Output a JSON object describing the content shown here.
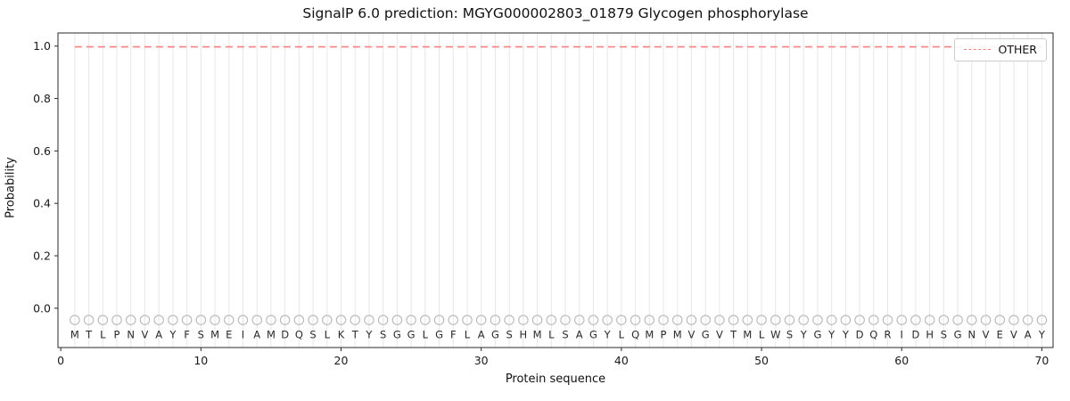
{
  "chart_data": {
    "type": "line",
    "title": "SignalP 6.0 prediction: MGYG000002803_01879 Glycogen phosphorylase",
    "xlabel": "Protein sequence",
    "ylabel": "Probability",
    "xlim": [
      -0.2,
      70.8
    ],
    "ylim": [
      -0.15,
      1.05
    ],
    "x_ticks": [
      0,
      10,
      20,
      30,
      40,
      50,
      60,
      70
    ],
    "y_ticks": [
      0.0,
      0.2,
      0.4,
      0.6,
      0.8,
      1.0
    ],
    "grid": "vertical gridline at every residue position",
    "sequence": "MTLPNVAYFSMEIAMDQSLKTYSGGLGFLAGSHMLSAGYLQMPMVGVTMLWSYGYYDQRIDHSGNVEVAY",
    "series": [
      {
        "name": "OTHER",
        "linestyle": "dashed",
        "color": "#ff7f7f",
        "x_start": 1,
        "values": [
          0.997,
          0.997,
          0.997,
          0.997,
          0.997,
          0.997,
          0.997,
          0.997,
          0.997,
          0.997,
          0.997,
          0.997,
          0.997,
          0.997,
          0.997,
          0.997,
          0.997,
          0.997,
          0.997,
          0.997,
          0.997,
          0.997,
          0.997,
          0.997,
          0.997,
          0.997,
          0.997,
          0.997,
          0.997,
          0.997,
          0.997,
          0.997,
          0.997,
          0.997,
          0.997,
          0.997,
          0.997,
          0.997,
          0.997,
          0.997,
          0.997,
          0.997,
          0.997,
          0.997,
          0.997,
          0.997,
          0.997,
          0.997,
          0.997,
          0.997,
          0.997,
          0.997,
          0.997,
          0.997,
          0.997,
          0.997,
          0.997,
          0.997,
          0.997,
          0.997,
          0.997,
          0.997,
          0.997,
          0.997,
          0.997,
          0.997,
          0.997,
          0.997,
          0.997,
          0.997
        ]
      }
    ],
    "marker_row": {
      "symbol": "open-circle",
      "y": -0.045
    },
    "letter_row_y": -0.1,
    "legend": {
      "position": "upper right",
      "entries": [
        {
          "label": "OTHER",
          "color": "#ff7f7f",
          "linestyle": "dashed"
        }
      ]
    },
    "colors": {
      "line": "#ff7f7f",
      "grid": "#e7e7e7",
      "spine": "#2a2a2a",
      "marker": "#b8b8b8",
      "letter": "#2a2a2a",
      "tick_label": "#1a1a1a"
    }
  }
}
